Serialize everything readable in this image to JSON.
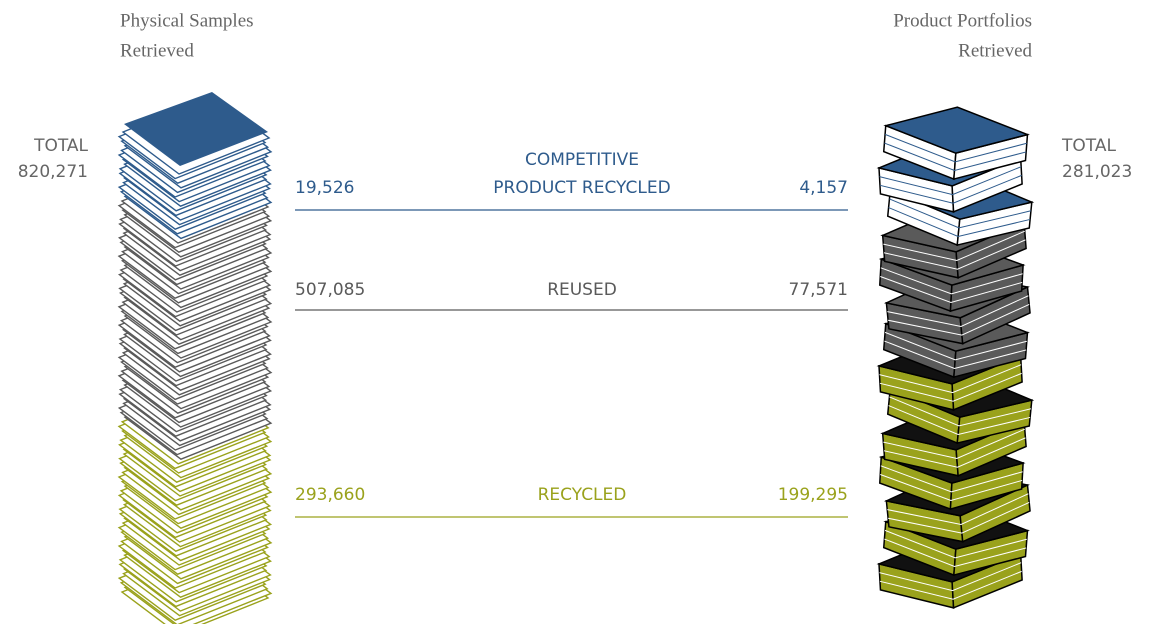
{
  "left": {
    "title": [
      "Physical Samples",
      "Retrieved"
    ],
    "total_label": "TOTAL",
    "total": "820,271"
  },
  "right": {
    "title": [
      "Product Portfolios",
      "Retrieved"
    ],
    "total_label": "TOTAL",
    "total": "281,023"
  },
  "rows": [
    {
      "label": [
        "COMPETITIVE",
        "PRODUCT RECYCLED"
      ],
      "left": "19,526",
      "right": "4,157",
      "color": "#2e5b8c"
    },
    {
      "label": [
        "REUSED"
      ],
      "left": "507,085",
      "right": "77,571",
      "color": "#5a5a5a"
    },
    {
      "label": [
        "RECYCLED"
      ],
      "left": "293,660",
      "right": "199,295",
      "color": "#9aa21c"
    }
  ]
}
